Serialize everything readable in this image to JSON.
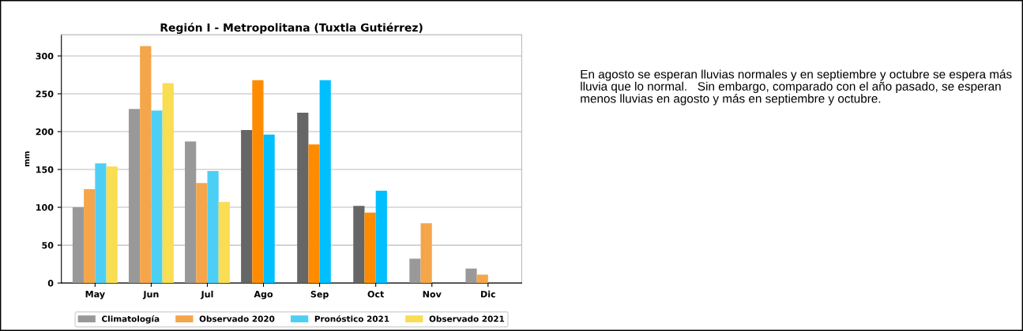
{
  "chart_data": {
    "type": "bar",
    "title": "Región I - Metropolitana (Tuxtla Gutiérrez)",
    "ylabel": "mm",
    "categories": [
      "May",
      "Jun",
      "Jul",
      "Ago",
      "Sep",
      "Oct",
      "Nov",
      "Dic"
    ],
    "series": [
      {
        "name": "Climatología",
        "color": "#999999",
        "values": [
          100,
          230,
          187,
          202,
          225,
          102,
          32,
          19
        ],
        "colors": [
          "#999999",
          "#999999",
          "#999999",
          "#666666",
          "#666666",
          "#666666",
          "#999999",
          "#999999"
        ]
      },
      {
        "name": "Observado 2020",
        "color": "#f5a54a",
        "values": [
          124,
          313,
          132,
          268,
          183,
          93,
          79,
          11
        ],
        "colors": [
          "#f5a54a",
          "#f5a54a",
          "#f5a54a",
          "#ff8c00",
          "#ff8c00",
          "#ff8c00",
          "#f5a54a",
          "#f5a54a"
        ]
      },
      {
        "name": "Pronóstico 2021",
        "color": "#4dcff5",
        "values": [
          158,
          228,
          148,
          196,
          268,
          122,
          null,
          null
        ],
        "colors": [
          "#4dcff5",
          "#4dcff5",
          "#4dcff5",
          "#00bfff",
          "#00bfff",
          "#00bfff",
          "#4dcff5",
          "#4dcff5"
        ]
      },
      {
        "name": "Observado 2021",
        "color": "#f9dd52",
        "values": [
          154,
          264,
          107,
          null,
          null,
          null,
          null,
          null
        ]
      }
    ],
    "ylim": [
      0,
      328
    ],
    "yticks": [
      0,
      50,
      100,
      150,
      200,
      250,
      300
    ],
    "grid": "y",
    "legend": "bottom",
    "annotations": [
      "En agosto se esperan lluvias normales y en septiembre y octubre se espera más lluvia que lo normal.   Sin embargo, comparado con el año pasado, se esperan menos lluvias en agosto y más en septiembre y octubre."
    ]
  }
}
